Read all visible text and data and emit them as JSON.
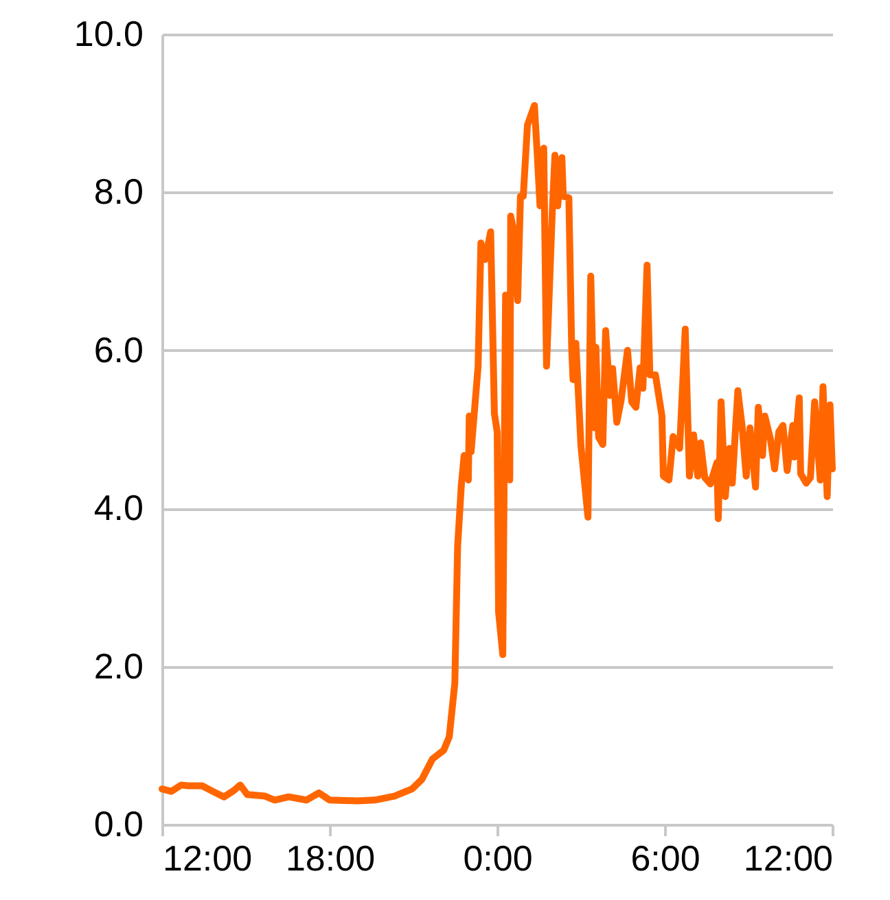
{
  "chart_data": {
    "type": "line",
    "x": [
      "--01-01T12:00",
      "--01-01T12:20",
      "--01-01T12:41",
      "--01-01T12:56",
      "--01-01T13:26",
      "--01-01T13:49",
      "--01-01T14:13",
      "--01-01T14:34",
      "--01-01T14:48",
      "--01-01T15:03",
      "--01-01T15:41",
      "--01-01T16:02",
      "--01-01T16:32",
      "--01-01T17:10",
      "--01-01T17:37",
      "--01-01T18:00",
      "--01-01T18:59",
      "--01-01T19:37",
      "--01-01T20:19",
      "--01-01T20:57",
      "--01-01T21:18",
      "--01-01T21:41",
      "--01-01T22:05",
      "--01-01T22:17",
      "--01-01T22:29",
      "--01-01T22:35",
      "--01-01T22:43",
      "--01-01T22:49",
      "--01-01T22:58",
      "--01-01T23:00",
      "--01-01T23:04",
      "--01-01T23:19",
      "--01-01T23:25",
      "--01-01T23:34",
      "--01-01T23:46",
      "--01-01T23:54",
      "--01-02T00:00",
      "--01-02T00:03",
      "--01-02T00:12",
      "--01-02T00:18",
      "--01-02T00:27",
      "--01-02T00:29",
      "--01-02T00:35",
      "--01-02T00:44",
      "--01-02T00:50",
      "--01-02T00:56",
      "--01-02T01:05",
      "--01-02T01:20",
      "--01-02T01:26",
      "--01-02T01:32",
      "--01-02T01:40",
      "--01-02T01:46",
      "--01-02T01:58",
      "--01-02T02:04",
      "--01-02T02:10",
      "--01-02T02:19",
      "--01-02T02:22",
      "--01-02T02:34",
      "--01-02T02:40",
      "--01-02T02:43",
      "--01-02T02:49",
      "--01-02T03:00",
      "--01-02T03:15",
      "--01-02T03:21",
      "--01-02T03:29",
      "--01-02T03:32",
      "--01-02T03:38",
      "--01-02T03:47",
      "--01-02T03:53",
      "--01-02T04:02",
      "--01-02T04:08",
      "--01-02T04:17",
      "--01-02T04:26",
      "--01-02T04:40",
      "--01-02T04:49",
      "--01-02T04:58",
      "--01-02T05:07",
      "--01-02T05:13",
      "--01-02T05:22",
      "--01-02T05:28",
      "--01-02T05:40",
      "--01-02T05:54",
      "--01-02T05:57",
      "--01-02T06:09",
      "--01-02T06:18",
      "--01-02T06:32",
      "--01-02T06:44",
      "--01-02T06:53",
      "--01-02T07:02",
      "--01-02T07:11",
      "--01-02T07:17",
      "--01-02T07:26",
      "--01-02T07:38",
      "--01-02T07:52",
      "--01-02T07:55",
      "--01-02T08:01",
      "--01-02T08:10",
      "--01-02T08:19",
      "--01-02T08:25",
      "--01-02T08:37",
      "--01-02T08:46",
      "--01-02T08:55",
      "--01-02T09:03",
      "--01-02T09:15",
      "--01-02T09:21",
      "--01-02T09:30",
      "--01-02T09:35",
      "--01-02T09:47",
      "--01-02T09:56",
      "--01-02T10:05",
      "--01-02T10:14",
      "--01-02T10:23",
      "--01-02T10:35",
      "--01-02T10:38",
      "--01-02T10:49",
      "--01-02T10:52",
      "--01-02T11:04",
      "--01-02T11:13",
      "--01-02T11:22",
      "--01-02T11:34",
      "--01-02T11:40",
      "--01-02T11:49",
      "--01-02T11:55",
      "--01-02T12:00"
    ],
    "values": [
      0.45,
      0.42,
      0.5,
      0.49,
      0.49,
      0.42,
      0.35,
      0.43,
      0.5,
      0.38,
      0.36,
      0.31,
      0.35,
      0.31,
      0.4,
      0.31,
      0.3,
      0.31,
      0.36,
      0.45,
      0.57,
      0.83,
      0.94,
      1.11,
      1.79,
      3.52,
      4.3,
      4.67,
      4.36,
      5.17,
      4.72,
      5.8,
      7.36,
      7.15,
      7.5,
      5.2,
      4.97,
      2.69,
      2.15,
      6.7,
      4.36,
      7.7,
      7.53,
      6.63,
      7.95,
      7.95,
      8.85,
      9.1,
      8.49,
      7.83,
      8.56,
      5.8,
      7.7,
      8.47,
      7.83,
      8.44,
      7.95,
      7.93,
      6.04,
      5.63,
      6.09,
      4.79,
      3.89,
      6.94,
      5.02,
      6.04,
      4.9,
      4.81,
      6.25,
      5.43,
      5.77,
      5.09,
      5.36,
      6.0,
      5.35,
      5.28,
      5.78,
      5.52,
      7.08,
      5.69,
      5.69,
      5.17,
      4.41,
      4.36,
      4.91,
      4.76,
      6.27,
      4.41,
      4.93,
      4.41,
      4.83,
      4.39,
      4.31,
      4.58,
      3.87,
      5.35,
      4.15,
      4.76,
      4.32,
      5.49,
      5.05,
      4.41,
      5.02,
      4.27,
      5.28,
      4.67,
      5.17,
      4.88,
      4.5,
      4.97,
      5.05,
      4.48,
      5.05,
      4.65,
      5.4,
      4.44,
      4.32,
      4.39,
      5.35,
      4.36,
      5.54,
      4.15,
      5.31,
      4.5
    ],
    "color": "#ff6600",
    "xlim": [
      "--01-01T12:00",
      "--01-02T12:00"
    ],
    "xticks": [
      {
        "value": "--01-01T12:00",
        "label": "12:00"
      },
      {
        "value": "--01-01T18:00",
        "label": "18:00"
      },
      {
        "value": "--01-02T00:00",
        "label": "0:00"
      },
      {
        "value": "--01-02T06:00",
        "label": "6:00"
      },
      {
        "value": "--01-02T12:00",
        "label": "12:00"
      }
    ],
    "ylim": [
      0,
      10
    ],
    "yticks": [
      {
        "value": 0,
        "label": "0.0"
      },
      {
        "value": 2,
        "label": "2.0"
      },
      {
        "value": 4,
        "label": "4.0"
      },
      {
        "value": 6,
        "label": "6.0"
      },
      {
        "value": 8,
        "label": "8.0"
      },
      {
        "value": 10,
        "label": "10.0"
      }
    ],
    "grid": "y"
  }
}
